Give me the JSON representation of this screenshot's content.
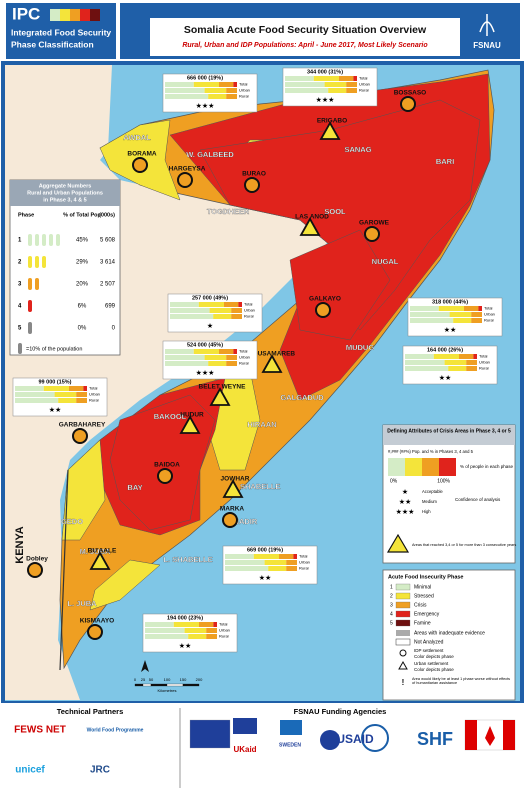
{
  "header": {
    "logo": "IPC",
    "logo_sub_1": "Integrated Food Security",
    "logo_sub_2": "Phase Classification",
    "title": "Somalia Acute Food Security Situation Overview",
    "subtitle": "Rural, Urban and IDP Populations: April - June 2017, Most Likely Scenario",
    "agency": "FSNAU"
  },
  "aggregate": {
    "title": [
      "Aggregate Numbers",
      "Rural and Urban Populations",
      "in Phase 3, 4 & 5"
    ],
    "columns": [
      "Phase",
      "% of Total Pop",
      "(000s)"
    ],
    "rows": [
      [
        "1",
        "45%",
        "5 608"
      ],
      [
        "2",
        "29%",
        "3 614"
      ],
      [
        "3",
        "20%",
        "2 507"
      ],
      [
        "4",
        "6%",
        "699"
      ],
      [
        "5",
        "0%",
        "0"
      ]
    ],
    "note": "=10% of the population"
  },
  "regions": [
    "AWDAL",
    "W. GALBEED",
    "TOGDHEER",
    "SANAG",
    "SOOL",
    "BARI",
    "NUGAL",
    "MUDUG",
    "GALGADUD",
    "HIRAAN",
    "BAKOOL",
    "GEDO",
    "BAY",
    "M. SHABELLE",
    "L. SHABELLE",
    "M. JUBA",
    "L. JUBA",
    "BANADIR"
  ],
  "towns": [
    "BOSSASO",
    "ERIGABO",
    "BORAMA",
    "HARGEYSA",
    "BURAO",
    "LAS ANOD",
    "GAROWE",
    "GALKAYO",
    "DUSAMAREB",
    "BELET WEYNE",
    "HUDUR",
    "GARBAHAREY",
    "BAIDOA",
    "JOWHAR",
    "MARKA",
    "BU'AALE",
    "KISMAAYO",
    "Dobley"
  ],
  "country": "KENYA",
  "callouts": {
    "labels": [
      "Total",
      "Urban",
      "Rural"
    ],
    "items": [
      {
        "value": "666 000 (19%)",
        "stars": "★★★"
      },
      {
        "value": "344 000 (31%)",
        "stars": "★★★"
      },
      {
        "value": "257 000 (49%)",
        "stars": "★"
      },
      {
        "value": "524 000 (45%)",
        "stars": "★★★"
      },
      {
        "value": "99 000 (15%)",
        "stars": "★★"
      },
      {
        "value": "318 000 (44%)",
        "stars": "★★"
      },
      {
        "value": "164 000 (26%)",
        "stars": "★★"
      },
      {
        "value": "669 000 (19%)",
        "stars": "★★"
      },
      {
        "value": "194 000 (23%)",
        "stars": "★★"
      }
    ]
  },
  "crisis_legend": {
    "title": "Defining Attributes of Crisis Areas in Phase 3, 4 or 5",
    "caption": "#,### (##%) Pop. and % in Phases 3, 4 and 5",
    "scale": [
      "0%",
      "100%"
    ],
    "scale_note": "% of people in each phase",
    "confidence_title": "Confidence of analysis",
    "confidence": [
      {
        "stars": "★",
        "label": "Acceptable"
      },
      {
        "stars": "★★",
        "label": "Medium"
      },
      {
        "stars": "★★★",
        "label": "High"
      }
    ],
    "triangle_note": "Areas that reached 3,4 or 5 for more than 3 consecutive years"
  },
  "phase_legend": {
    "title": "Acute Food Insecurity Phase",
    "items": [
      {
        "num": "1",
        "label": "Minimal",
        "color": "#d4ecc6"
      },
      {
        "num": "2",
        "label": "Stressed",
        "color": "#f4e43a"
      },
      {
        "num": "3",
        "label": "Crisis",
        "color": "#ef9f22"
      },
      {
        "num": "4",
        "label": "Emergency",
        "color": "#e0231c"
      },
      {
        "num": "5",
        "label": "Famine",
        "color": "#6e1010"
      }
    ],
    "inadequate": "Areas with inadequate evidence",
    "not_analyzed": "Not Analyzed",
    "idp": "IDP settlement",
    "idp_note": "Color depicts phase",
    "urban": "Urban settlement",
    "urban_note": "Color depicts phase",
    "assistance": "Area would likely be at least 1 phase worse without effects of humanitarian assistance"
  },
  "scale": {
    "ticks": [
      "0",
      "25",
      "50",
      "100",
      "150",
      "200"
    ],
    "unit": "Kilometres"
  },
  "footer": {
    "partners_title": "Technical Partners",
    "funders_title": "FSNAU Funding Agencies",
    "partners": [
      "FEWS NET",
      "World Food Programme",
      "unicef",
      "JRC"
    ],
    "funders": [
      "UKaid",
      "SWEDEN",
      "USAID",
      "SHF"
    ]
  }
}
